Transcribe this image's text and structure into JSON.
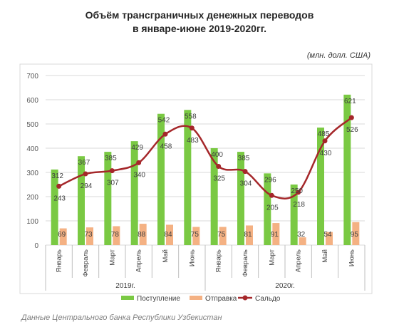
{
  "title_line1": "Объём трансграничных денежных переводов",
  "title_line2": "в январе-июне 2019-2020гг.",
  "unit": "(млн. долл. США)",
  "source": "Данные Центрального банка Республики Узбекистан",
  "colors": {
    "inflow": "#7ac943",
    "outflow": "#f4b183",
    "balance": "#a5272a",
    "grid": "#d9d9d9"
  },
  "chart_data": {
    "type": "bar",
    "categories": [
      "Январь",
      "Февраль",
      "Март",
      "Апрель",
      "Май",
      "Июнь",
      "Январь",
      "Февраль",
      "Март",
      "Апрель",
      "Май",
      "Июнь"
    ],
    "groups": [
      {
        "label": "2019г.",
        "count": 6
      },
      {
        "label": "2020г.",
        "count": 6
      }
    ],
    "ylim": [
      0,
      700
    ],
    "yticks": [
      0,
      100,
      200,
      300,
      400,
      500,
      600,
      700
    ],
    "grid": true,
    "legend_position": "bottom",
    "series": [
      {
        "name": "Поступление",
        "type": "bar",
        "values": [
          312,
          367,
          385,
          429,
          542,
          558,
          400,
          385,
          296,
          250,
          485,
          621
        ]
      },
      {
        "name": "Отправка",
        "type": "bar",
        "values": [
          69,
          73,
          78,
          88,
          84,
          75,
          75,
          81,
          91,
          32,
          54,
          95
        ]
      },
      {
        "name": "Сальдо",
        "type": "line",
        "values": [
          243,
          294,
          307,
          340,
          458,
          483,
          325,
          304,
          205,
          218,
          430,
          526
        ]
      }
    ]
  }
}
